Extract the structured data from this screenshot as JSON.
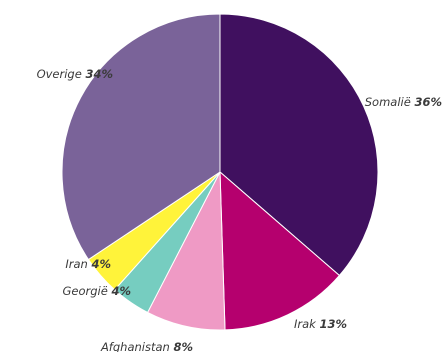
{
  "chart_data": {
    "type": "pie",
    "categories": [
      "Somalië",
      "Irak",
      "Afghanistan",
      "Georgië",
      "Iran",
      "Overige"
    ],
    "values": [
      36,
      13,
      8,
      4,
      4,
      34
    ],
    "value_labels": [
      "36%",
      "13%",
      "8%",
      "4%",
      "4%",
      "34%"
    ],
    "colors": [
      "#40105f",
      "#b5006e",
      "#ef9ac5",
      "#76cdc0",
      "#fff33a",
      "#7a6399"
    ],
    "start": "12 o'clock",
    "direction": "clockwise",
    "legend": "none",
    "title": ""
  }
}
